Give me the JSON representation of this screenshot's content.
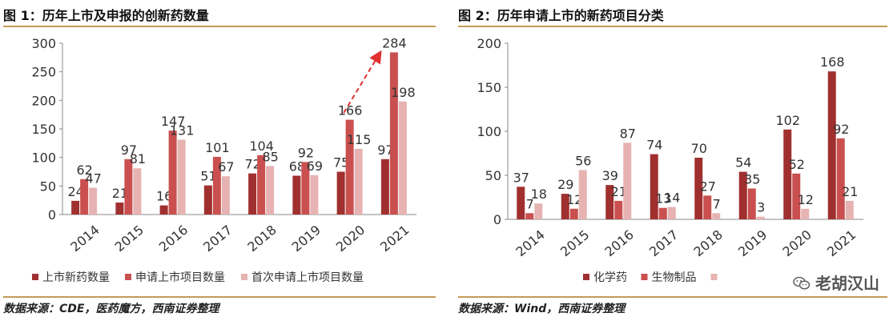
{
  "charts": [
    {
      "fig_title": "图 1：历年上市及申报的创新药数量",
      "source": "数据来源：CDE，医药魔方，西南证券整理",
      "colors": [
        "#a0302f",
        "#c9504f",
        "#e6b3b2"
      ]
    },
    {
      "fig_title": "图 2：历年申请上市的新药项目分类",
      "source": "数据来源：Wind，西南证券整理",
      "colors": [
        "#a0302f",
        "#c9504f",
        "#e6b3b2"
      ]
    }
  ],
  "watermark": {
    "text": "老胡汉山",
    "icon": "wechat-icon"
  },
  "chart_data": [
    {
      "type": "bar",
      "title": "图 1：历年上市及申报的创新药数量",
      "categories": [
        "2014",
        "2015",
        "2016",
        "2017",
        "2018",
        "2019",
        "2020",
        "2021"
      ],
      "series": [
        {
          "name": "上市新药数量",
          "values": [
            24,
            21,
            16,
            51,
            72,
            68,
            75,
            97
          ]
        },
        {
          "name": "申请上市项目数量",
          "values": [
            62,
            97,
            147,
            101,
            104,
            92,
            166,
            284
          ]
        },
        {
          "name": "首次申请上市项目数量",
          "values": [
            47,
            81,
            131,
            67,
            85,
            69,
            115,
            198
          ]
        }
      ],
      "yticks": [
        0,
        50,
        100,
        150,
        200,
        250,
        300
      ],
      "ylim": [
        0,
        300
      ],
      "grid": false,
      "legend": "bottom",
      "annotation": "dashed-arrow 2020-2021"
    },
    {
      "type": "bar",
      "title": "图 2：历年申请上市的新药项目分类",
      "categories": [
        "2014",
        "2015",
        "2016",
        "2017",
        "2018",
        "2019",
        "2020",
        "2021"
      ],
      "series": [
        {
          "name": "化学药",
          "values": [
            37,
            29,
            39,
            74,
            70,
            54,
            102,
            168
          ]
        },
        {
          "name": "生物制品",
          "values": [
            7,
            12,
            21,
            13,
            27,
            35,
            52,
            92
          ]
        },
        {
          "name": "",
          "values": [
            18,
            56,
            87,
            14,
            7,
            3,
            12,
            21
          ]
        }
      ],
      "yticks": [
        0,
        50,
        100,
        150,
        200
      ],
      "ylim": [
        0,
        200
      ],
      "grid": false,
      "legend": "bottom"
    }
  ]
}
